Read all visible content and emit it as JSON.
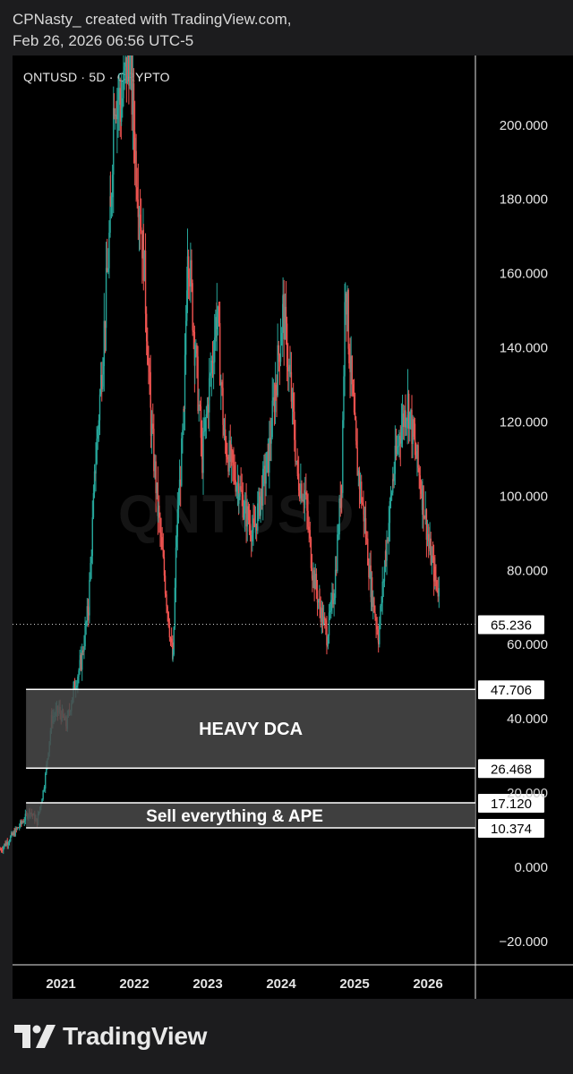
{
  "credit": {
    "line1": "CPNasty_ created with TradingView.com,",
    "line2": "Feb 26, 2026 06:56 UTC-5"
  },
  "chart_data": {
    "type": "candlestick",
    "symbol_label": "QNTUSD · 5D · CRYPTO",
    "watermark": "QNTUSD",
    "y_axis": {
      "ticks": [
        200,
        180,
        160,
        140,
        120,
        100,
        80,
        60,
        40,
        20,
        0,
        -20
      ],
      "tick_labels": [
        "200.000",
        "180.000",
        "160.000",
        "140.000",
        "120.000",
        "100.000",
        "80.000",
        "60.000",
        "40.000",
        "20.000",
        "0.000",
        "−20.000"
      ],
      "range": [
        -27,
        218
      ]
    },
    "x_axis": {
      "ticks": [
        2021,
        2022,
        2023,
        2024,
        2025,
        2026
      ],
      "tick_labels": [
        "2021",
        "2022",
        "2023",
        "2024",
        "2025",
        "2026"
      ],
      "range": [
        2020.2,
        2026.5
      ]
    },
    "current_price": {
      "value": 65.236,
      "label": "65.236"
    },
    "zones": [
      {
        "name": "HEAVY DCA",
        "top": 47.706,
        "bottom": 26.468,
        "top_label": "47.706",
        "bottom_label": "26.468",
        "x_start": 2020.55,
        "x_end": 2026.5
      },
      {
        "name": "Sell everything & APE",
        "top": 17.12,
        "bottom": 10.374,
        "top_label": "17.120",
        "bottom_label": "10.374",
        "x_start": 2020.55,
        "x_end": 2026.5
      }
    ],
    "price_path": [
      [
        2020.2,
        4.5
      ],
      [
        2020.35,
        8
      ],
      [
        2020.5,
        12
      ],
      [
        2020.6,
        15
      ],
      [
        2020.7,
        12
      ],
      [
        2020.8,
        22
      ],
      [
        2020.9,
        40
      ],
      [
        2021.0,
        42
      ],
      [
        2021.1,
        38
      ],
      [
        2021.2,
        48
      ],
      [
        2021.3,
        55
      ],
      [
        2021.4,
        70
      ],
      [
        2021.5,
        110
      ],
      [
        2021.6,
        140
      ],
      [
        2021.7,
        175
      ],
      [
        2021.75,
        210
      ],
      [
        2021.85,
        205
      ],
      [
        2021.95,
        220
      ],
      [
        2022.05,
        190
      ],
      [
        2022.15,
        165
      ],
      [
        2022.25,
        120
      ],
      [
        2022.35,
        95
      ],
      [
        2022.45,
        75
      ],
      [
        2022.55,
        55
      ],
      [
        2022.6,
        90
      ],
      [
        2022.7,
        120
      ],
      [
        2022.75,
        170
      ],
      [
        2022.85,
        140
      ],
      [
        2022.95,
        110
      ],
      [
        2023.05,
        130
      ],
      [
        2023.15,
        150
      ],
      [
        2023.25,
        115
      ],
      [
        2023.35,
        108
      ],
      [
        2023.45,
        102
      ],
      [
        2023.55,
        95
      ],
      [
        2023.65,
        90
      ],
      [
        2023.75,
        100
      ],
      [
        2023.85,
        110
      ],
      [
        2023.95,
        130
      ],
      [
        2024.05,
        150
      ],
      [
        2024.15,
        130
      ],
      [
        2024.25,
        105
      ],
      [
        2024.35,
        100
      ],
      [
        2024.45,
        80
      ],
      [
        2024.55,
        70
      ],
      [
        2024.65,
        62
      ],
      [
        2024.75,
        75
      ],
      [
        2024.85,
        105
      ],
      [
        2024.9,
        160
      ],
      [
        2024.95,
        140
      ],
      [
        2025.05,
        110
      ],
      [
        2025.15,
        95
      ],
      [
        2025.25,
        75
      ],
      [
        2025.35,
        62
      ],
      [
        2025.45,
        85
      ],
      [
        2025.55,
        105
      ],
      [
        2025.65,
        118
      ],
      [
        2025.75,
        125
      ],
      [
        2025.85,
        112
      ],
      [
        2025.95,
        100
      ],
      [
        2026.05,
        85
      ],
      [
        2026.12,
        78
      ],
      [
        2026.2,
        72
      ],
      [
        2026.27,
        65.236
      ]
    ],
    "colors": {
      "up": "#26a69a",
      "down": "#ef5350",
      "zone_fill": "#4a4a4a",
      "zone_line": "#ffffff"
    }
  },
  "footer": {
    "brand": "TradingView"
  }
}
